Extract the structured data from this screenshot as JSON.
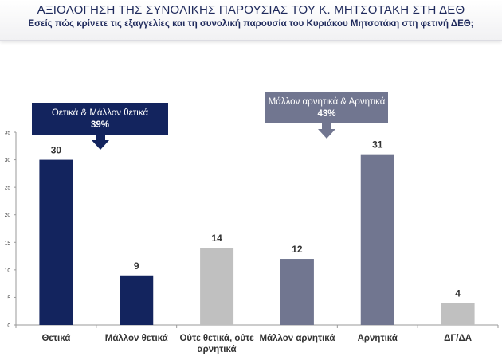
{
  "header": {
    "title": "ΑΞΙΟΛΟΓΗΣΗ ΤΗΣ ΣΥΝΟΛΙΚΗΣ ΠΑΡΟΥΣΙΑΣ ΤΟΥ Κ. ΜΗΤΣΟΤΑΚΗ ΣΤΗ ΔΕΘ",
    "subtitle": "Εσείς πώς κρίνετε τις εξαγγελίες και τη συνολική παρουσία του Κυριάκου Μητσοτάκη στη φετινή ΔΕΘ;"
  },
  "colors": {
    "positive": "#13245e",
    "neutral": "#c0c0c0",
    "negative": "#717690",
    "title": "#1f2a5c"
  },
  "chart_data": {
    "type": "bar",
    "title": "",
    "xlabel": "",
    "ylabel": "",
    "ylim": [
      0,
      35
    ],
    "yticks": [
      0,
      5,
      10,
      15,
      20,
      25,
      30,
      35
    ],
    "grid": false,
    "categories": [
      "Θετικά",
      "Μάλλον θετικά",
      "Ούτε θετικά, ούτε αρνητικά",
      "Μάλλον αρνητικά",
      "Αρνητικά",
      "ΔΓ/ΔΑ"
    ],
    "category_lines": [
      [
        "Θετικά"
      ],
      [
        "Μάλλον θετικά"
      ],
      [
        "Ούτε θετικά, ούτε",
        "αρνητικά"
      ],
      [
        "Μάλλον αρνητικά"
      ],
      [
        "Αρνητικά"
      ],
      [
        "ΔΓ/ΔΑ"
      ]
    ],
    "values": [
      30,
      9,
      14,
      12,
      31,
      4
    ],
    "bar_colors": [
      "#13245e",
      "#13245e",
      "#c0c0c0",
      "#717690",
      "#717690",
      "#c0c0c0"
    ],
    "annotations": [
      {
        "label": "Θετικά & Μάλλον θετικά",
        "value": "39%",
        "color": "#13245e"
      },
      {
        "label": "Μάλλον αρνητικά & Αρνητικά",
        "value": "43%",
        "color": "#717690"
      }
    ]
  }
}
